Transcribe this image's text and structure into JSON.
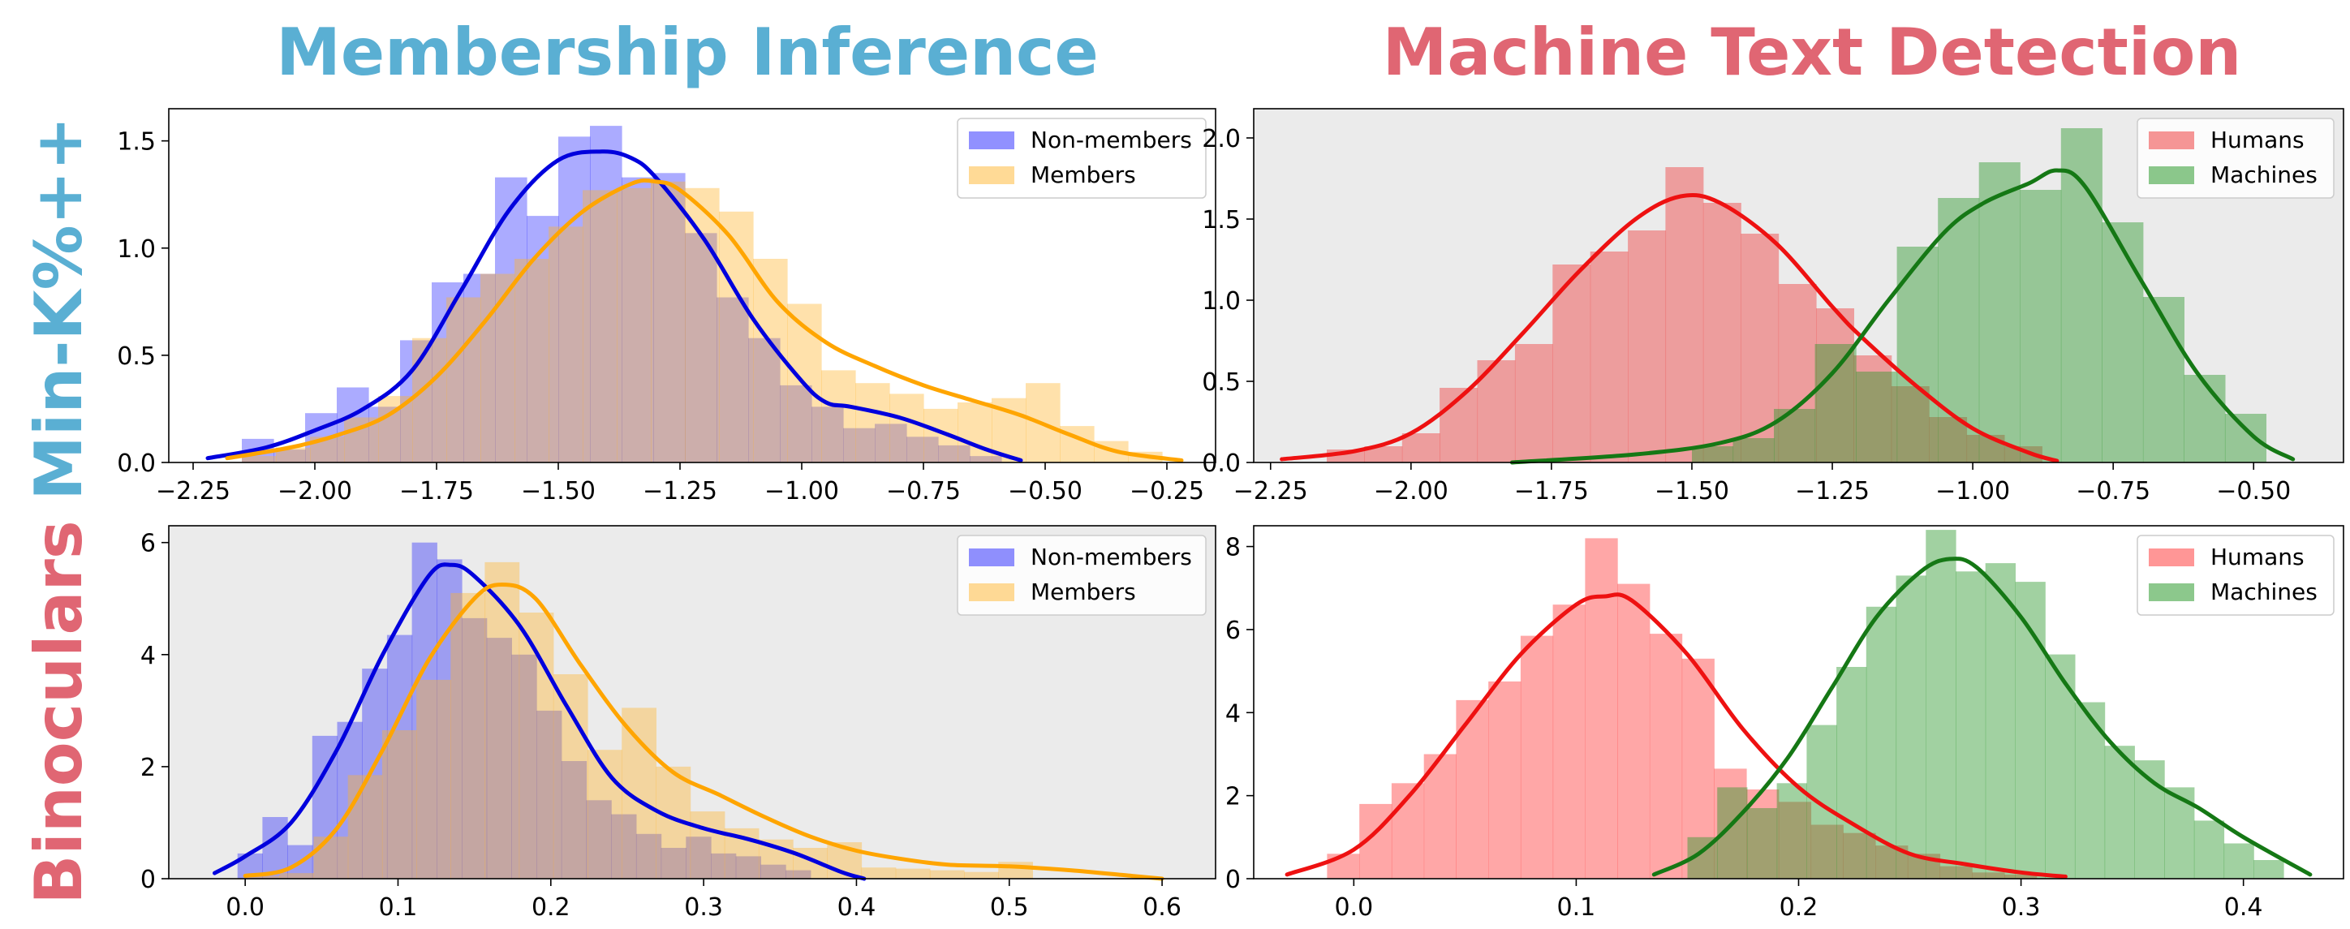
{
  "column_titles": [
    {
      "text": "Membership Inference",
      "color": "#5aafd3"
    },
    {
      "text": "Machine Text Detection",
      "color": "#e06673"
    }
  ],
  "row_titles": [
    {
      "text": "Min-K%++",
      "color": "#5aafd3"
    },
    {
      "text": "Binoculars",
      "color": "#e06673"
    }
  ],
  "chart_data": [
    {
      "type": "histogram-kde",
      "panel": "Membership Inference / Min-K%++",
      "background": "#ffffff",
      "xlim": [
        -2.3,
        -0.15
      ],
      "ylim": [
        0,
        1.65
      ],
      "xticks": [
        -2.25,
        -2.0,
        -1.75,
        -1.5,
        -1.25,
        -1.0,
        -0.75,
        -0.5,
        -0.25
      ],
      "xtick_labels": [
        "−2.25",
        "−2.00",
        "−1.75",
        "−1.50",
        "−1.25",
        "−1.00",
        "−0.75",
        "−0.50",
        "−0.25"
      ],
      "yticks": [
        0.0,
        0.5,
        1.0,
        1.5
      ],
      "ytick_labels": [
        "0.0",
        "0.5",
        "1.0",
        "1.5"
      ],
      "legend": {
        "position": "upper right",
        "entries": [
          "Non-members",
          "Members"
        ]
      },
      "series": [
        {
          "name": "Non-members",
          "fill": "#0000ff",
          "fill_opacity": 0.33,
          "line": "#0000dd",
          "bin_edges": [
            -2.15,
            -2.085,
            -2.02,
            -1.955,
            -1.89,
            -1.825,
            -1.76,
            -1.695,
            -1.63,
            -1.565,
            -1.5,
            -1.435,
            -1.37,
            -1.305,
            -1.24,
            -1.175,
            -1.11,
            -1.045,
            -0.98,
            -0.915,
            -0.85,
            -0.785,
            -0.72,
            -0.655,
            -0.59
          ],
          "counts": [
            0.11,
            0.06,
            0.23,
            0.35,
            0.26,
            0.57,
            0.84,
            0.88,
            1.33,
            1.15,
            1.52,
            1.57,
            1.33,
            1.35,
            1.07,
            0.77,
            0.58,
            0.36,
            0.26,
            0.16,
            0.18,
            0.12,
            0.08,
            0.03
          ],
          "kde": {
            "x": [
              -2.22,
              -2.1,
              -2.0,
              -1.9,
              -1.8,
              -1.7,
              -1.6,
              -1.5,
              -1.41,
              -1.35,
              -1.3,
              -1.2,
              -1.1,
              -1.0,
              -0.95,
              -0.9,
              -0.8,
              -0.7,
              -0.62,
              -0.55
            ],
            "y": [
              0.02,
              0.07,
              0.15,
              0.25,
              0.43,
              0.8,
              1.18,
              1.41,
              1.45,
              1.42,
              1.33,
              1.04,
              0.67,
              0.38,
              0.28,
              0.26,
              0.21,
              0.13,
              0.06,
              0.01
            ]
          }
        },
        {
          "name": "Members",
          "fill": "#ffb52e",
          "fill_opacity": 0.4,
          "line": "#ffa500",
          "bin_edges": [
            -2.15,
            -2.08,
            -2.01,
            -1.94,
            -1.87,
            -1.8,
            -1.73,
            -1.66,
            -1.59,
            -1.52,
            -1.45,
            -1.38,
            -1.31,
            -1.24,
            -1.17,
            -1.1,
            -1.03,
            -0.96,
            -0.89,
            -0.82,
            -0.75,
            -0.68,
            -0.61,
            -0.54,
            -0.47,
            -0.4,
            -0.33,
            -0.26
          ],
          "counts": [
            0.03,
            0.07,
            0.12,
            0.21,
            0.31,
            0.58,
            0.77,
            0.88,
            0.95,
            1.1,
            1.27,
            1.28,
            1.31,
            1.28,
            1.17,
            0.95,
            0.74,
            0.43,
            0.37,
            0.32,
            0.25,
            0.28,
            0.3,
            0.37,
            0.17,
            0.1,
            0.05
          ],
          "kde": {
            "x": [
              -2.18,
              -2.05,
              -1.95,
              -1.85,
              -1.75,
              -1.65,
              -1.55,
              -1.45,
              -1.35,
              -1.3,
              -1.25,
              -1.15,
              -1.05,
              -0.95,
              -0.85,
              -0.75,
              -0.65,
              -0.55,
              -0.45,
              -0.35,
              -0.22
            ],
            "y": [
              0.02,
              0.07,
              0.13,
              0.22,
              0.4,
              0.66,
              0.95,
              1.17,
              1.3,
              1.31,
              1.27,
              1.06,
              0.75,
              0.56,
              0.45,
              0.36,
              0.29,
              0.22,
              0.13,
              0.05,
              0.01
            ]
          }
        }
      ]
    },
    {
      "type": "histogram-kde",
      "panel": "Machine Text Detection / Min-K%++",
      "background": "#ebebeb",
      "xlim": [
        -2.28,
        -0.34
      ],
      "ylim": [
        0,
        2.18
      ],
      "xticks": [
        -2.25,
        -2.0,
        -1.75,
        -1.5,
        -1.25,
        -1.0,
        -0.75,
        -0.5
      ],
      "xtick_labels": [
        "−2.25",
        "−2.00",
        "−1.75",
        "−1.50",
        "−1.25",
        "−1.00",
        "−0.75",
        "−0.50"
      ],
      "yticks": [
        0.0,
        0.5,
        1.0,
        1.5,
        2.0
      ],
      "ytick_labels": [
        "0.0",
        "0.5",
        "1.0",
        "1.5",
        "2.0"
      ],
      "legend": {
        "position": "upper right",
        "entries": [
          "Humans",
          "Machines"
        ]
      },
      "series": [
        {
          "name": "Humans",
          "fill": "#f05050",
          "fill_opacity": 0.5,
          "line": "#ee1111",
          "bin_edges": [
            -2.15,
            -2.083,
            -2.016,
            -1.949,
            -1.882,
            -1.815,
            -1.748,
            -1.681,
            -1.614,
            -1.547,
            -1.48,
            -1.413,
            -1.346,
            -1.279,
            -1.212,
            -1.145,
            -1.078,
            -1.011,
            -0.944,
            -0.877
          ],
          "counts": [
            0.08,
            0.1,
            0.18,
            0.46,
            0.63,
            0.73,
            1.22,
            1.3,
            1.43,
            1.82,
            1.6,
            1.41,
            1.1,
            0.95,
            0.66,
            0.47,
            0.28,
            0.17,
            0.1
          ],
          "kde": {
            "x": [
              -2.23,
              -2.1,
              -2.0,
              -1.9,
              -1.8,
              -1.7,
              -1.6,
              -1.52,
              -1.45,
              -1.35,
              -1.25,
              -1.2,
              -1.1,
              -1.0,
              -0.9,
              -0.85
            ],
            "y": [
              0.02,
              0.07,
              0.18,
              0.44,
              0.8,
              1.18,
              1.5,
              1.64,
              1.6,
              1.35,
              0.96,
              0.78,
              0.47,
              0.21,
              0.06,
              0.01
            ]
          }
        },
        {
          "name": "Machines",
          "fill": "#2e9a2e",
          "fill_opacity": 0.45,
          "line": "#157815",
          "bin_edges": [
            -1.5,
            -1.427,
            -1.354,
            -1.281,
            -1.208,
            -1.135,
            -1.062,
            -0.989,
            -0.916,
            -0.843,
            -0.77,
            -0.697,
            -0.624,
            -0.551,
            -0.478
          ],
          "counts": [
            0.1,
            0.15,
            0.33,
            0.73,
            0.56,
            1.33,
            1.63,
            1.85,
            1.68,
            2.06,
            1.48,
            1.02,
            0.54,
            0.3
          ],
          "kde": {
            "x": [
              -1.82,
              -1.6,
              -1.45,
              -1.35,
              -1.25,
              -1.15,
              -1.05,
              -0.98,
              -0.9,
              -0.85,
              -0.8,
              -0.7,
              -0.6,
              -0.5,
              -0.43
            ],
            "y": [
              0.0,
              0.05,
              0.12,
              0.25,
              0.55,
              1.0,
              1.42,
              1.6,
              1.72,
              1.8,
              1.7,
              1.12,
              0.55,
              0.16,
              0.02
            ]
          }
        }
      ]
    },
    {
      "type": "histogram-kde",
      "panel": "Membership Inference / Binoculars",
      "background": "#ebebeb",
      "xlim": [
        -0.05,
        0.635
      ],
      "ylim": [
        0,
        6.3
      ],
      "xticks": [
        0.0,
        0.1,
        0.2,
        0.3,
        0.4,
        0.5,
        0.6
      ],
      "xtick_labels": [
        "0.0",
        "0.1",
        "0.2",
        "0.3",
        "0.4",
        "0.5",
        "0.6"
      ],
      "yticks": [
        0,
        2,
        4,
        6
      ],
      "ytick_labels": [
        "0",
        "2",
        "4",
        "6"
      ],
      "legend": {
        "position": "upper right",
        "entries": [
          "Non-members",
          "Members"
        ]
      },
      "series": [
        {
          "name": "Non-members",
          "fill": "#0000ff",
          "fill_opacity": 0.33,
          "line": "#0000dd",
          "bin_edges": [
            -0.005,
            0.0113,
            0.0276,
            0.0439,
            0.0602,
            0.0765,
            0.0928,
            0.1091,
            0.1254,
            0.1417,
            0.158,
            0.1743,
            0.1906,
            0.2069,
            0.2232,
            0.2395,
            0.2558,
            0.2721,
            0.2884,
            0.3047,
            0.321,
            0.3373,
            0.3536,
            0.3699
          ],
          "counts": [
            0.45,
            1.1,
            0.6,
            2.55,
            2.8,
            3.75,
            4.35,
            6.0,
            5.7,
            4.65,
            4.3,
            4.0,
            3.0,
            2.1,
            1.4,
            1.15,
            0.8,
            0.55,
            0.75,
            0.45,
            0.4,
            0.25,
            0.15
          ],
          "kde": {
            "x": [
              -0.02,
              0.0,
              0.03,
              0.06,
              0.09,
              0.12,
              0.135,
              0.15,
              0.18,
              0.21,
              0.24,
              0.27,
              0.3,
              0.33,
              0.36,
              0.39,
              0.405
            ],
            "y": [
              0.1,
              0.4,
              1.0,
              2.3,
              4.0,
              5.4,
              5.6,
              5.4,
              4.5,
              3.1,
              1.8,
              1.2,
              0.9,
              0.7,
              0.45,
              0.12,
              0.0
            ]
          }
        },
        {
          "name": "Members",
          "fill": "#ffb52e",
          "fill_opacity": 0.4,
          "line": "#ffa500",
          "bin_edges": [
            0.0,
            0.0224,
            0.0448,
            0.0672,
            0.0896,
            0.112,
            0.1344,
            0.1568,
            0.1792,
            0.2016,
            0.224,
            0.2464,
            0.2688,
            0.2912,
            0.3136,
            0.336,
            0.3584,
            0.3808,
            0.4032,
            0.4256,
            0.448,
            0.4704,
            0.4928,
            0.5152
          ],
          "counts": [
            0.05,
            0.1,
            0.75,
            1.85,
            2.65,
            3.55,
            5.1,
            5.65,
            4.75,
            3.65,
            2.3,
            3.05,
            2.0,
            1.2,
            0.9,
            0.7,
            0.55,
            0.65,
            0.2,
            0.18,
            0.15,
            0.12,
            0.3
          ],
          "kde": {
            "x": [
              0.0,
              0.03,
              0.06,
              0.09,
              0.12,
              0.15,
              0.168,
              0.19,
              0.22,
              0.25,
              0.28,
              0.31,
              0.34,
              0.37,
              0.4,
              0.43,
              0.46,
              0.5,
              0.54,
              0.58,
              0.6
            ],
            "y": [
              0.05,
              0.2,
              0.9,
              2.3,
              3.9,
              5.0,
              5.25,
              5.0,
              3.8,
              2.7,
              1.9,
              1.5,
              1.1,
              0.75,
              0.5,
              0.35,
              0.25,
              0.22,
              0.15,
              0.05,
              0.0
            ]
          }
        }
      ]
    },
    {
      "type": "histogram-kde",
      "panel": "Machine Text Detection / Binoculars",
      "background": "#ffffff",
      "xlim": [
        -0.045,
        0.445
      ],
      "ylim": [
        0,
        8.5
      ],
      "xticks": [
        0.0,
        0.1,
        0.2,
        0.3,
        0.4
      ],
      "xtick_labels": [
        "0.0",
        "0.1",
        "0.2",
        "0.3",
        "0.4"
      ],
      "yticks": [
        0,
        2,
        4,
        6,
        8
      ],
      "ytick_labels": [
        "0",
        "2",
        "4",
        "6",
        "8"
      ],
      "legend": {
        "position": "upper right",
        "entries": [
          "Humans",
          "Machines"
        ]
      },
      "series": [
        {
          "name": "Humans",
          "fill": "#ff5050",
          "fill_opacity": 0.5,
          "line": "#ee1111",
          "bin_edges": [
            -0.012,
            0.0025,
            0.017,
            0.0315,
            0.046,
            0.0605,
            0.075,
            0.0895,
            0.104,
            0.1185,
            0.133,
            0.1475,
            0.162,
            0.1765,
            0.191,
            0.2055,
            0.22,
            0.2345,
            0.249,
            0.2635,
            0.278,
            0.2925,
            0.307
          ],
          "counts": [
            0.6,
            1.8,
            2.3,
            3.0,
            4.3,
            4.75,
            5.85,
            6.6,
            8.2,
            7.1,
            5.9,
            5.3,
            2.65,
            2.15,
            1.85,
            1.3,
            1.1,
            0.8,
            0.6,
            0.3,
            0.15,
            0.1
          ],
          "kde": {
            "x": [
              -0.03,
              0.0,
              0.025,
              0.05,
              0.075,
              0.1,
              0.113,
              0.125,
              0.15,
              0.175,
              0.2,
              0.225,
              0.25,
              0.275,
              0.3,
              0.32
            ],
            "y": [
              0.1,
              0.7,
              2.0,
              3.7,
              5.4,
              6.6,
              6.8,
              6.7,
              5.4,
              3.6,
              2.2,
              1.3,
              0.6,
              0.35,
              0.15,
              0.05
            ]
          }
        },
        {
          "name": "Machines",
          "fill": "#2e9a2e",
          "fill_opacity": 0.45,
          "line": "#157815",
          "bin_edges": [
            0.15,
            0.1634,
            0.1768,
            0.1902,
            0.2036,
            0.217,
            0.2304,
            0.2438,
            0.2572,
            0.2706,
            0.284,
            0.2974,
            0.3108,
            0.3242,
            0.3376,
            0.351,
            0.3644,
            0.3778,
            0.3912,
            0.4046,
            0.418
          ],
          "counts": [
            1.0,
            2.2,
            1.7,
            2.3,
            3.7,
            5.1,
            6.55,
            7.3,
            8.4,
            7.4,
            7.6,
            7.15,
            5.4,
            4.25,
            3.2,
            2.85,
            2.2,
            1.4,
            0.85,
            0.45
          ],
          "kde": {
            "x": [
              0.135,
              0.155,
              0.175,
              0.195,
              0.215,
              0.235,
              0.255,
              0.268,
              0.28,
              0.3,
              0.32,
              0.34,
              0.36,
              0.38,
              0.4,
              0.43
            ],
            "y": [
              0.1,
              0.6,
              1.6,
              2.9,
              4.6,
              6.3,
              7.4,
              7.7,
              7.5,
              6.3,
              4.7,
              3.3,
              2.3,
              1.7,
              1.0,
              0.1
            ]
          }
        }
      ]
    }
  ]
}
